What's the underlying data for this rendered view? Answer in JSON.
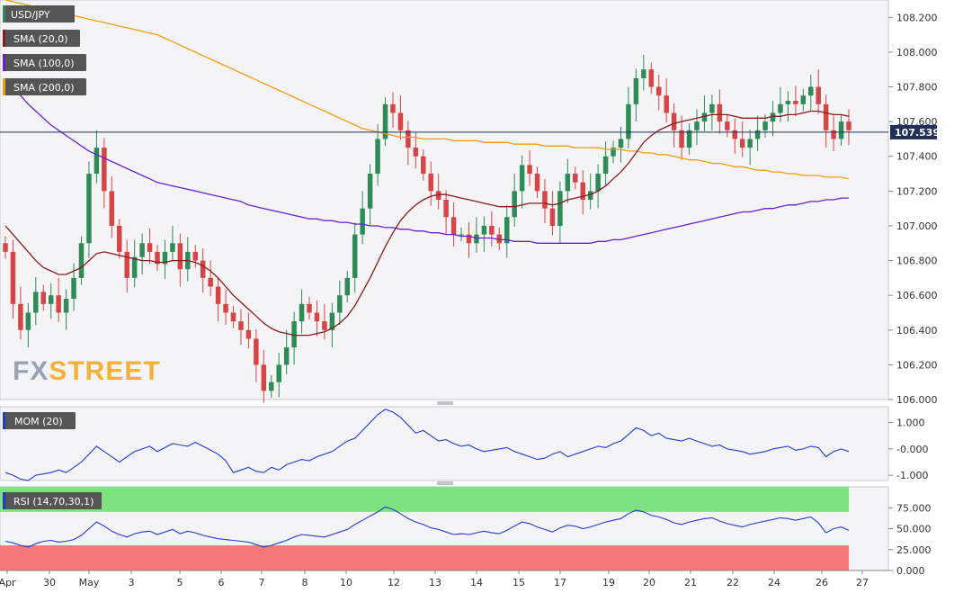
{
  "chart_data": [
    {
      "type": "candlestick",
      "symbol": "USD/JPY",
      "ylim": [
        106.0,
        108.3
      ],
      "yticks": [
        "108.200",
        "108.000",
        "107.800",
        "107.600",
        "107.400",
        "107.200",
        "107.000",
        "106.800",
        "106.600",
        "106.400",
        "106.200",
        "106.000"
      ],
      "current_price": "107.539",
      "legend": [
        {
          "label": "USD/JPY",
          "color": "#2e8b57"
        },
        {
          "label": "SMA (20,0)",
          "color": "#8b1a1a"
        },
        {
          "label": "SMA (100,0)",
          "color": "#6a1fd1"
        },
        {
          "label": "SMA (200,0)",
          "color": "#f39c12"
        }
      ],
      "x_labels": [
        "Apr",
        "30",
        "May",
        "3",
        "5",
        "6",
        "7",
        "8",
        "10",
        "12",
        "13",
        "14",
        "15",
        "17",
        "19",
        "20",
        "21",
        "22",
        "24",
        "26",
        "27"
      ],
      "close": [
        106.85,
        106.55,
        106.4,
        106.5,
        106.62,
        106.55,
        106.6,
        106.5,
        106.58,
        106.7,
        106.9,
        107.3,
        107.45,
        107.2,
        107.0,
        106.85,
        106.7,
        106.82,
        106.9,
        106.85,
        106.78,
        106.85,
        106.9,
        106.75,
        106.85,
        106.8,
        106.7,
        106.65,
        106.55,
        106.5,
        106.45,
        106.4,
        106.35,
        106.2,
        106.05,
        106.1,
        106.2,
        106.3,
        106.45,
        106.55,
        106.5,
        106.45,
        106.4,
        106.5,
        106.6,
        106.7,
        106.95,
        107.1,
        107.3,
        107.5,
        107.7,
        107.65,
        107.55,
        107.45,
        107.4,
        107.3,
        107.2,
        107.15,
        107.05,
        106.95,
        106.95,
        106.9,
        106.95,
        107.0,
        106.95,
        106.9,
        107.05,
        107.2,
        107.35,
        107.3,
        107.2,
        107.1,
        107.0,
        107.2,
        107.3,
        107.25,
        107.15,
        107.2,
        107.3,
        107.4,
        107.45,
        107.5,
        107.7,
        107.85,
        107.9,
        107.8,
        107.75,
        107.65,
        107.55,
        107.45,
        107.55,
        107.6,
        107.65,
        107.7,
        107.6,
        107.55,
        107.5,
        107.45,
        107.5,
        107.55,
        107.6,
        107.65,
        107.7,
        107.72,
        107.7,
        107.75,
        107.8,
        107.7,
        107.55,
        107.5,
        107.6,
        107.55
      ],
      "sma20": [
        107.0,
        106.95,
        106.9,
        106.85,
        106.8,
        106.76,
        106.74,
        106.72,
        106.72,
        106.74,
        106.76,
        106.8,
        106.84,
        106.85,
        106.84,
        106.83,
        106.82,
        106.81,
        106.8,
        106.8,
        106.79,
        106.79,
        106.8,
        106.8,
        106.8,
        106.79,
        106.77,
        106.74,
        106.7,
        106.65,
        106.6,
        106.56,
        106.52,
        106.48,
        106.44,
        106.41,
        106.39,
        106.38,
        106.37,
        106.37,
        106.37,
        106.38,
        106.39,
        106.41,
        106.44,
        106.48,
        106.54,
        106.62,
        106.7,
        106.79,
        106.88,
        106.96,
        107.03,
        107.08,
        107.12,
        107.15,
        107.17,
        107.18,
        107.18,
        107.17,
        107.16,
        107.15,
        107.14,
        107.13,
        107.12,
        107.11,
        107.11,
        107.11,
        107.12,
        107.13,
        107.13,
        107.13,
        107.12,
        107.13,
        107.15,
        107.16,
        107.17,
        107.18,
        107.2,
        107.23,
        107.27,
        107.31,
        107.36,
        107.42,
        107.48,
        107.52,
        107.55,
        107.57,
        107.59,
        107.6,
        107.61,
        107.62,
        107.63,
        107.64,
        107.64,
        107.64,
        107.63,
        107.62,
        107.62,
        107.62,
        107.62,
        107.63,
        107.63,
        107.64,
        107.64,
        107.65,
        107.66,
        107.66,
        107.65,
        107.64,
        107.64,
        107.63
      ],
      "sma100": [
        107.85,
        107.8,
        107.75,
        107.7,
        107.66,
        107.62,
        107.58,
        107.55,
        107.52,
        107.49,
        107.46,
        107.43,
        107.41,
        107.39,
        107.37,
        107.35,
        107.33,
        107.31,
        107.29,
        107.27,
        107.25,
        107.24,
        107.23,
        107.22,
        107.21,
        107.2,
        107.19,
        107.18,
        107.17,
        107.16,
        107.15,
        107.14,
        107.12,
        107.11,
        107.1,
        107.09,
        107.08,
        107.07,
        107.06,
        107.05,
        107.04,
        107.04,
        107.03,
        107.03,
        107.02,
        107.02,
        107.01,
        107.01,
        107.0,
        107.0,
        106.99,
        106.99,
        106.98,
        106.98,
        106.97,
        106.97,
        106.96,
        106.96,
        106.95,
        106.95,
        106.94,
        106.94,
        106.93,
        106.93,
        106.93,
        106.92,
        106.92,
        106.91,
        106.91,
        106.91,
        106.9,
        106.9,
        106.9,
        106.9,
        106.9,
        106.9,
        106.9,
        106.9,
        106.91,
        106.91,
        106.92,
        106.92,
        106.93,
        106.94,
        106.95,
        106.96,
        106.97,
        106.98,
        106.99,
        107.0,
        107.01,
        107.02,
        107.03,
        107.04,
        107.05,
        107.06,
        107.07,
        107.08,
        107.08,
        107.09,
        107.1,
        107.1,
        107.11,
        107.12,
        107.12,
        107.13,
        107.14,
        107.14,
        107.15,
        107.15,
        107.16,
        107.16
      ],
      "sma200": [
        108.3,
        108.29,
        108.28,
        108.27,
        108.26,
        108.25,
        108.24,
        108.23,
        108.22,
        108.21,
        108.2,
        108.19,
        108.18,
        108.17,
        108.16,
        108.15,
        108.14,
        108.13,
        108.12,
        108.11,
        108.1,
        108.08,
        108.06,
        108.04,
        108.02,
        108.0,
        107.98,
        107.96,
        107.94,
        107.92,
        107.9,
        107.88,
        107.86,
        107.84,
        107.82,
        107.8,
        107.78,
        107.76,
        107.74,
        107.72,
        107.7,
        107.68,
        107.66,
        107.64,
        107.62,
        107.6,
        107.58,
        107.56,
        107.55,
        107.54,
        107.53,
        107.52,
        107.51,
        107.51,
        107.51,
        107.5,
        107.5,
        107.5,
        107.5,
        107.49,
        107.49,
        107.49,
        107.49,
        107.48,
        107.48,
        107.48,
        107.48,
        107.47,
        107.47,
        107.47,
        107.47,
        107.46,
        107.46,
        107.46,
        107.46,
        107.45,
        107.45,
        107.45,
        107.45,
        107.44,
        107.44,
        107.44,
        107.43,
        107.43,
        107.42,
        107.42,
        107.41,
        107.41,
        107.4,
        107.39,
        107.38,
        107.38,
        107.37,
        107.36,
        107.36,
        107.35,
        107.34,
        107.34,
        107.33,
        107.32,
        107.32,
        107.31,
        107.31,
        107.3,
        107.3,
        107.29,
        107.29,
        107.29,
        107.28,
        107.28,
        107.28,
        107.27
      ]
    },
    {
      "type": "line",
      "indicator": "MOM (20)",
      "ylim": [
        -1.2,
        1.6
      ],
      "yticks": [
        "1.000",
        "-0.000",
        "-1.000"
      ],
      "values": [
        -0.9,
        -1.0,
        -1.15,
        -1.2,
        -1.0,
        -0.95,
        -0.9,
        -0.8,
        -0.9,
        -0.7,
        -0.5,
        -0.2,
        0.1,
        -0.1,
        -0.3,
        -0.5,
        -0.3,
        -0.1,
        0.0,
        0.1,
        -0.1,
        0.05,
        0.2,
        0.15,
        0.1,
        0.25,
        0.1,
        -0.05,
        -0.2,
        -0.45,
        -0.9,
        -0.8,
        -0.7,
        -0.85,
        -0.9,
        -0.7,
        -0.8,
        -0.6,
        -0.5,
        -0.4,
        -0.45,
        -0.3,
        -0.2,
        -0.1,
        0.1,
        0.3,
        0.4,
        0.7,
        1.0,
        1.3,
        1.5,
        1.4,
        1.2,
        0.9,
        0.6,
        0.7,
        0.5,
        0.3,
        0.35,
        0.2,
        0.1,
        0.15,
        0.0,
        -0.1,
        -0.05,
        0.0,
        0.05,
        -0.1,
        -0.2,
        -0.3,
        -0.4,
        -0.35,
        -0.2,
        -0.1,
        -0.3,
        -0.2,
        -0.1,
        0.0,
        0.1,
        0.05,
        0.2,
        0.3,
        0.55,
        0.8,
        0.7,
        0.5,
        0.6,
        0.4,
        0.35,
        0.3,
        0.4,
        0.3,
        0.2,
        0.1,
        0.15,
        0.0,
        -0.05,
        -0.1,
        -0.2,
        -0.15,
        -0.1,
        0.0,
        0.05,
        0.1,
        -0.05,
        0.0,
        0.1,
        0.05,
        -0.3,
        -0.1,
        0.0,
        -0.1
      ]
    },
    {
      "type": "line",
      "indicator": "RSI (14,70,30,1)",
      "ylim": [
        0,
        100
      ],
      "yticks": [
        "75.000",
        "50.000",
        "25.000",
        "0.000"
      ],
      "overbought": 70,
      "oversold": 30,
      "values": [
        35,
        33,
        30,
        28,
        32,
        35,
        36,
        34,
        35,
        37,
        42,
        50,
        58,
        53,
        47,
        43,
        40,
        44,
        46,
        47,
        43,
        46,
        49,
        44,
        47,
        45,
        42,
        40,
        38,
        37,
        36,
        35,
        34,
        31,
        28,
        30,
        33,
        36,
        40,
        43,
        42,
        41,
        40,
        43,
        46,
        49,
        55,
        60,
        65,
        70,
        76,
        73,
        68,
        62,
        58,
        55,
        51,
        49,
        46,
        43,
        44,
        43,
        45,
        47,
        45,
        44,
        48,
        53,
        58,
        56,
        52,
        49,
        46,
        51,
        54,
        53,
        50,
        52,
        55,
        58,
        60,
        62,
        68,
        72,
        70,
        66,
        64,
        61,
        57,
        55,
        58,
        60,
        62,
        63,
        59,
        56,
        54,
        52,
        55,
        57,
        59,
        61,
        63,
        62,
        60,
        62,
        64,
        57,
        45,
        50,
        52,
        48
      ]
    }
  ],
  "watermark": {
    "part1": "FX",
    "part2": "STREET"
  }
}
